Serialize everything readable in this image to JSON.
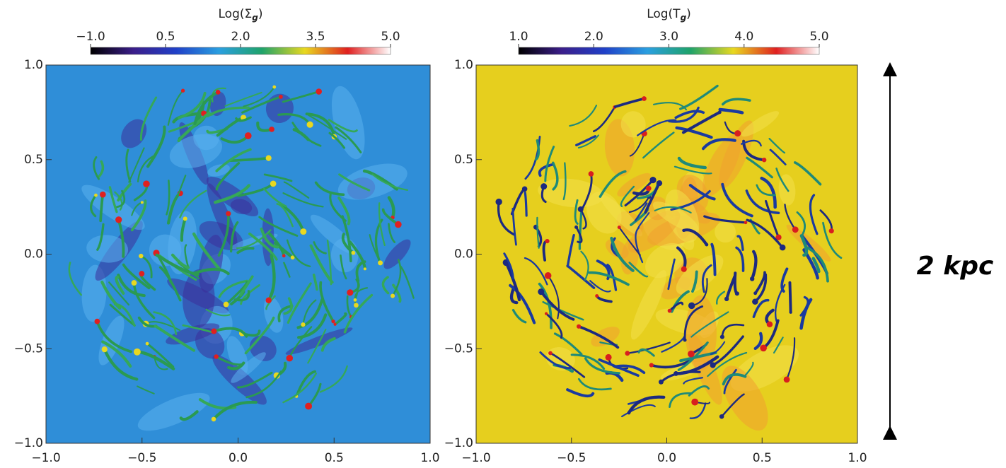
{
  "chart_data": [
    {
      "type": "heatmap",
      "title_parts": [
        "Log(Σ",
        "g",
        ")"
      ],
      "clim": [
        -1,
        5
      ],
      "colorbar_ticks": [
        {
          "value": -1,
          "label": "−1.0"
        },
        {
          "value": 0.5,
          "label": "0.5"
        },
        {
          "value": 2,
          "label": "2.0"
        },
        {
          "value": 3.5,
          "label": "3.5"
        },
        {
          "value": 5,
          "label": "5.0"
        }
      ],
      "colormap": [
        "#000000",
        "#3b1e8a",
        "#2040c8",
        "#2a9fe0",
        "#1fa36a",
        "#e8d820",
        "#e02020",
        "#ffffff"
      ],
      "background_color": "#2f8ed8",
      "xlim": [
        -1,
        1
      ],
      "ylim": [
        -1,
        1
      ],
      "xticks": [
        {
          "value": -1,
          "label": "−1.0"
        },
        {
          "value": -0.5,
          "label": "−0.5"
        },
        {
          "value": 0,
          "label": "0.0"
        },
        {
          "value": 0.5,
          "label": "0.5"
        },
        {
          "value": 1,
          "label": "1.0"
        }
      ],
      "yticks": [
        {
          "value": -1,
          "label": "−1.0"
        },
        {
          "value": -0.5,
          "label": "−0.5"
        },
        {
          "value": 0,
          "label": "0.0"
        },
        {
          "value": 0.5,
          "label": "0.5"
        },
        {
          "value": 1,
          "label": "1.0"
        }
      ]
    },
    {
      "type": "heatmap",
      "title_parts": [
        "Log(T",
        "g",
        ")"
      ],
      "clim": [
        1,
        5
      ],
      "colorbar_ticks": [
        {
          "value": 1,
          "label": "1.0"
        },
        {
          "value": 2,
          "label": "2.0"
        },
        {
          "value": 3,
          "label": "3.0"
        },
        {
          "value": 4,
          "label": "4.0"
        },
        {
          "value": 5,
          "label": "5.0"
        }
      ],
      "colormap": [
        "#000000",
        "#3b1e8a",
        "#2040c8",
        "#2a9fe0",
        "#1fa36a",
        "#e8d820",
        "#e02020",
        "#ffffff"
      ],
      "background_color": "#e6cf1e",
      "xlim": [
        -1,
        1
      ],
      "ylim": [
        -1,
        1
      ],
      "xticks": [
        {
          "value": -1,
          "label": "−1.0"
        },
        {
          "value": -0.5,
          "label": "−0.5"
        },
        {
          "value": 0,
          "label": "0.0"
        },
        {
          "value": 0.5,
          "label": "0.5"
        },
        {
          "value": 1,
          "label": "1.0"
        }
      ],
      "yticks": [
        {
          "value": -1,
          "label": "−1.0"
        },
        {
          "value": -0.5,
          "label": "−0.5"
        },
        {
          "value": 0,
          "label": "0.0"
        },
        {
          "value": 0.5,
          "label": "0.5"
        },
        {
          "value": 1,
          "label": "1.0"
        }
      ],
      "annotation": "2 kpc"
    }
  ]
}
